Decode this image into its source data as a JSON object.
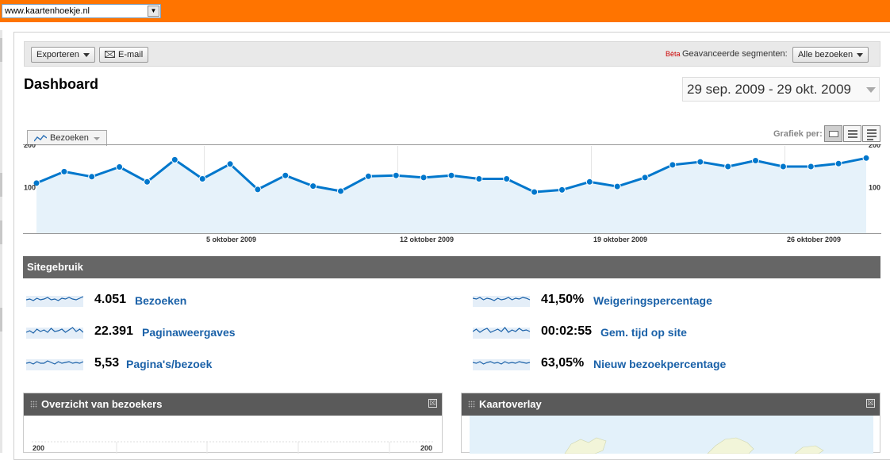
{
  "browser": {
    "site_select": "www.kaartenhoekje.nl"
  },
  "toolbar": {
    "export_label": "Exporteren",
    "email_label": "E-mail",
    "beta_label": "Bèta",
    "segments_label": "Geavanceerde segmenten:",
    "segments_value": "Alle bezoeken"
  },
  "page": {
    "title": "Dashboard",
    "date_range": "29 sep. 2009 - 29 okt. 2009"
  },
  "graph_controls": {
    "metric": "Bezoeken",
    "graph_per_label": "Grafiek per:"
  },
  "chart_data": {
    "type": "area",
    "series": [
      {
        "name": "Bezoeken",
        "values": [
          118,
          145,
          133,
          156,
          121,
          173,
          128,
          163,
          103,
          136,
          111,
          99,
          134,
          136,
          131,
          136,
          128,
          128,
          97,
          102,
          121,
          110,
          131,
          161,
          168,
          157,
          171,
          157,
          157,
          164,
          177
        ]
      }
    ],
    "ylim": [
      0,
      200
    ],
    "y_ticks": [
      "200",
      "100"
    ],
    "x_ticks": [
      "5 oktober 2009",
      "12 oktober 2009",
      "19 oktober 2009",
      "26 oktober 2009"
    ],
    "colors": {
      "line": "#0077cc",
      "fill": "#e6f2fa"
    },
    "grid": true
  },
  "site_usage": {
    "header": "Sitegebruik",
    "stats": [
      {
        "value": "4.051",
        "label": "Bezoeken"
      },
      {
        "value": "22.391",
        "label": "Paginaweergaves"
      },
      {
        "value": "5,53",
        "label": "Pagina's/bezoek"
      },
      {
        "value": "41,50%",
        "label": "Weigeringspercentage"
      },
      {
        "value": "00:02:55",
        "label": "Gem. tijd op site"
      },
      {
        "value": "63,05%",
        "label": "Nieuw bezoekpercentage"
      }
    ]
  },
  "widgets": {
    "visitors": {
      "title": "Overzicht van bezoekers",
      "y_left": "200",
      "y_right": "200"
    },
    "map": {
      "title": "Kaartoverlay"
    },
    "close_glyph": "☒"
  },
  "icons": [
    "dropdown-arrow-icon",
    "mail-icon",
    "line-chart-icon",
    "table-view-icon",
    "list-view-icon",
    "grip-icon",
    "close-icon",
    "sparkline-icon"
  ]
}
